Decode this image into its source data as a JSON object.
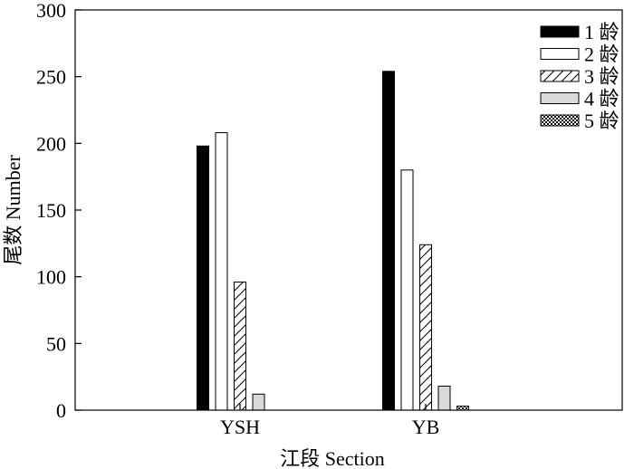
{
  "chart_data": {
    "type": "bar",
    "xlabel": "江段 Section",
    "ylabel": "尾数 Number",
    "ylim": [
      0,
      300
    ],
    "yticks": [
      0,
      50,
      100,
      150,
      200,
      250,
      300
    ],
    "categories": [
      "YSH",
      "YB"
    ],
    "series": [
      {
        "name": "1 龄",
        "fill": "solid-black",
        "values": [
          198,
          254
        ]
      },
      {
        "name": "2 龄",
        "fill": "white",
        "values": [
          208,
          180
        ]
      },
      {
        "name": "3 龄",
        "fill": "diagonal-hatch",
        "values": [
          96,
          124
        ]
      },
      {
        "name": "4 龄",
        "fill": "light-gray",
        "values": [
          12,
          18
        ]
      },
      {
        "name": "5 龄",
        "fill": "checker",
        "values": [
          0,
          3
        ]
      }
    ],
    "legend_position": "top-right",
    "grid": false
  }
}
